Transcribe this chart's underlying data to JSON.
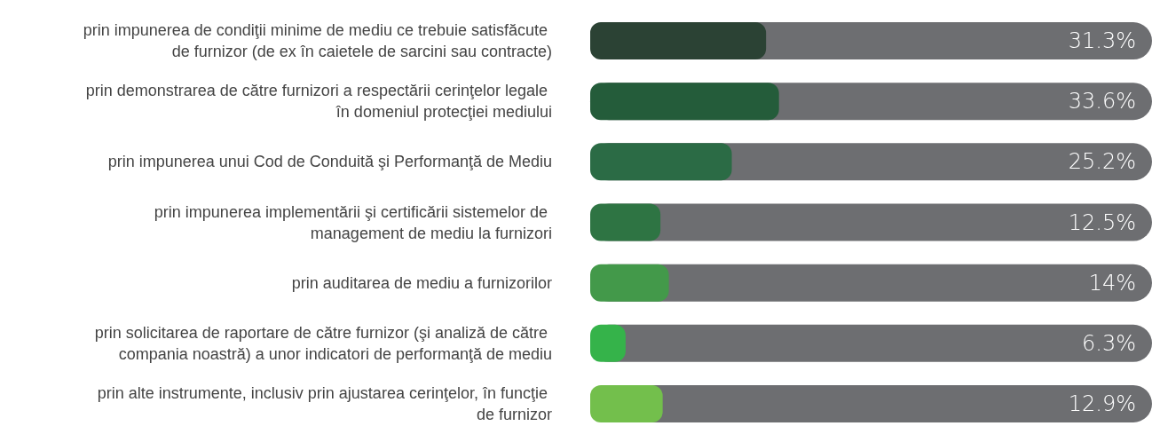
{
  "chart_data": {
    "type": "bar",
    "orientation": "horizontal",
    "categories": [
      "prin impunerea de condiţii minime de mediu ce trebuie satisfăcute de furnizor (de ex în caietele de sarcini sau contracte)",
      "prin demonstrarea de către furnizori a respectării cerinţelor legale în domeniul protecţiei mediului",
      "prin impunerea unui Cod de Conduită şi Performanţă de Mediu",
      "prin impunerea implementării şi certificării sistemelor de management de mediu la furnizori",
      "prin auditarea de mediu a furnizorilor",
      "prin solicitarea de raportare de către furnizor (şi analiză de către compania noastră) a unor indicatori de performanţă de mediu",
      "prin alte instrumente, inclusiv prin ajustarea cerinţelor, în funcţie de furnizor"
    ],
    "values": [
      31.3,
      33.6,
      25.2,
      12.5,
      14,
      6.3,
      12.9
    ],
    "value_labels": [
      "31.3%",
      "33.6%",
      "25.2%",
      "12.5%",
      "14%",
      "6.3%",
      "12.9%"
    ],
    "colors": [
      "#2b4234",
      "#245c3a",
      "#2b6b45",
      "#2e7443",
      "#43994a",
      "#35b34a",
      "#73bf4c"
    ],
    "xlim": [
      0,
      100
    ],
    "grid": false
  }
}
